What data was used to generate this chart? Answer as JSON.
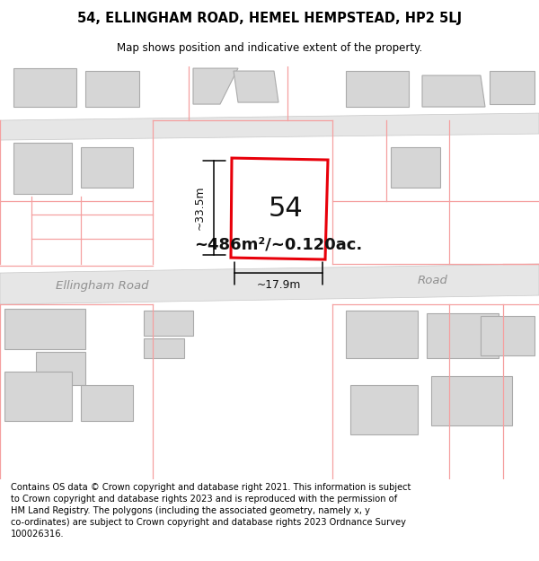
{
  "title": "54, ELLINGHAM ROAD, HEMEL HEMPSTEAD, HP2 5LJ",
  "subtitle": "Map shows position and indicative extent of the property.",
  "footer": "Contains OS data © Crown copyright and database right 2021. This information is subject\nto Crown copyright and database rights 2023 and is reproduced with the permission of\nHM Land Registry. The polygons (including the associated geometry, namely x, y\nco-ordinates) are subject to Crown copyright and database rights 2023 Ordnance Survey\n100026316.",
  "map_bg": "#f2f2f2",
  "building_fill": "#d6d6d6",
  "building_stroke": "#aaaaaa",
  "highlight_fill": "#ffffff",
  "highlight_stroke": "#e8000a",
  "pink_line": "#f5a0a0",
  "area_text": "~486m²/~0.120ac.",
  "dim_width": "~17.9m",
  "dim_height": "~33.5m",
  "label_54": "54",
  "road_label": "Ellingham Road",
  "road_label2": "Road",
  "road_fill": "#e8e8e8",
  "road_stroke": "#cccccc"
}
